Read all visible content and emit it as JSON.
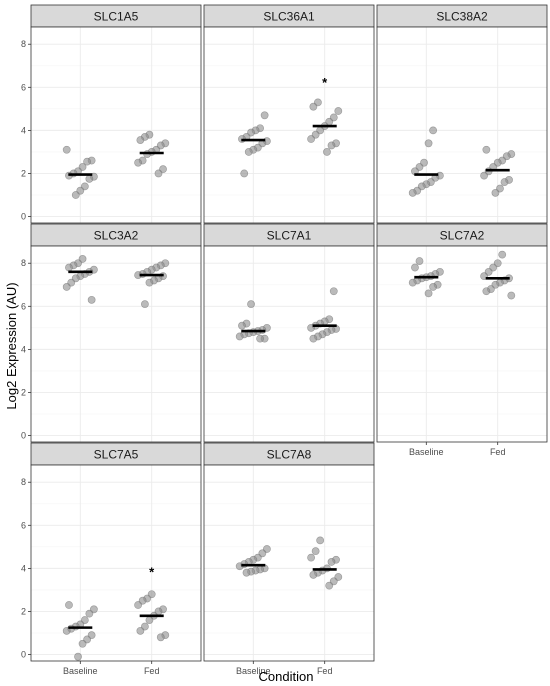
{
  "chart_data": {
    "type": "scatter",
    "subtype": "faceted dot plot with mean bars",
    "xlabel": "Condition",
    "ylabel": "Log2 Expression (AU)",
    "categories": [
      "Baseline",
      "Fed"
    ],
    "ylim": [
      -0.3,
      8.8
    ],
    "yticks": [
      0,
      2,
      4,
      6,
      8
    ],
    "grid": true,
    "layout": {
      "rows": 3,
      "cols": 3
    },
    "colors": {
      "point": "#8c8c8c",
      "mean_bar": "#000000",
      "strip_bg": "#d9d9d9",
      "border": "#333333",
      "grid": "#ebebeb"
    },
    "panels": [
      {
        "name": "SLC1A5",
        "row": 0,
        "col": 0,
        "means": [
          1.95,
          2.95
        ],
        "points": [
          [
            3.1,
            2.6,
            2.55,
            2.3,
            2.1,
            2.0,
            1.9,
            1.85,
            1.75,
            1.4,
            1.2,
            1.0
          ],
          [
            3.8,
            3.7,
            3.55,
            3.4,
            3.3,
            3.1,
            3.0,
            2.9,
            2.6,
            2.5,
            2.2,
            2.0
          ]
        ],
        "stars": [
          null,
          null
        ]
      },
      {
        "name": "SLC36A1",
        "row": 0,
        "col": 1,
        "means": [
          3.55,
          4.2
        ],
        "points": [
          [
            4.7,
            4.1,
            4.0,
            3.9,
            3.7,
            3.6,
            3.5,
            3.4,
            3.2,
            3.1,
            3.0,
            2.0
          ],
          [
            5.3,
            5.1,
            4.9,
            4.6,
            4.4,
            4.2,
            4.0,
            3.8,
            3.6,
            3.4,
            3.3,
            3.0
          ]
        ],
        "stars": [
          null,
          6.3
        ]
      },
      {
        "name": "SLC38A2",
        "row": 0,
        "col": 2,
        "means": [
          1.95,
          2.15
        ],
        "points": [
          [
            4.0,
            3.4,
            2.5,
            2.3,
            2.1,
            1.9,
            1.8,
            1.6,
            1.5,
            1.4,
            1.2,
            1.1
          ],
          [
            3.1,
            2.9,
            2.8,
            2.6,
            2.5,
            2.3,
            2.1,
            1.9,
            1.7,
            1.6,
            1.3,
            1.1
          ]
        ],
        "stars": [
          null,
          null
        ]
      },
      {
        "name": "SLC3A2",
        "row": 1,
        "col": 0,
        "means": [
          7.6,
          7.45
        ],
        "points": [
          [
            8.2,
            8.0,
            7.9,
            7.8,
            7.7,
            7.6,
            7.5,
            7.4,
            7.3,
            7.1,
            6.9,
            6.3
          ],
          [
            8.0,
            7.9,
            7.8,
            7.7,
            7.6,
            7.5,
            7.45,
            7.4,
            7.3,
            7.2,
            7.1,
            6.1
          ]
        ],
        "stars": [
          null,
          null
        ]
      },
      {
        "name": "SLC7A1",
        "row": 1,
        "col": 1,
        "means": [
          4.85,
          5.1
        ],
        "points": [
          [
            6.1,
            5.2,
            5.1,
            5.0,
            4.9,
            4.85,
            4.8,
            4.75,
            4.7,
            4.6,
            4.5,
            4.5
          ],
          [
            6.7,
            5.4,
            5.3,
            5.2,
            5.1,
            5.0,
            4.95,
            4.9,
            4.8,
            4.7,
            4.6,
            4.5
          ]
        ],
        "stars": [
          null,
          null
        ]
      },
      {
        "name": "SLC7A2",
        "row": 1,
        "col": 2,
        "means": [
          7.35,
          7.3
        ],
        "points": [
          [
            8.1,
            7.8,
            7.6,
            7.5,
            7.4,
            7.35,
            7.3,
            7.2,
            7.1,
            7.0,
            6.9,
            6.6
          ],
          [
            8.4,
            8.0,
            7.8,
            7.6,
            7.4,
            7.3,
            7.2,
            7.1,
            7.0,
            6.8,
            6.7,
            6.5
          ]
        ],
        "stars": [
          null,
          null
        ]
      },
      {
        "name": "SLC7A5",
        "row": 2,
        "col": 0,
        "means": [
          1.25,
          1.8
        ],
        "points": [
          [
            2.3,
            2.1,
            1.9,
            1.6,
            1.4,
            1.3,
            1.2,
            1.1,
            0.9,
            0.7,
            0.5,
            -0.1
          ],
          [
            2.8,
            2.6,
            2.5,
            2.3,
            2.1,
            2.0,
            1.8,
            1.6,
            1.3,
            1.1,
            0.9,
            0.8
          ]
        ],
        "stars": [
          null,
          3.9
        ]
      },
      {
        "name": "SLC7A8",
        "row": 2,
        "col": 1,
        "means": [
          4.15,
          3.95
        ],
        "points": [
          [
            4.9,
            4.7,
            4.5,
            4.4,
            4.3,
            4.2,
            4.1,
            4.0,
            3.95,
            3.9,
            3.85,
            3.8
          ],
          [
            5.3,
            4.8,
            4.5,
            4.4,
            4.3,
            4.0,
            3.9,
            3.8,
            3.7,
            3.6,
            3.4,
            3.2
          ]
        ],
        "stars": [
          null,
          null
        ]
      }
    ],
    "star_symbol": "*"
  }
}
